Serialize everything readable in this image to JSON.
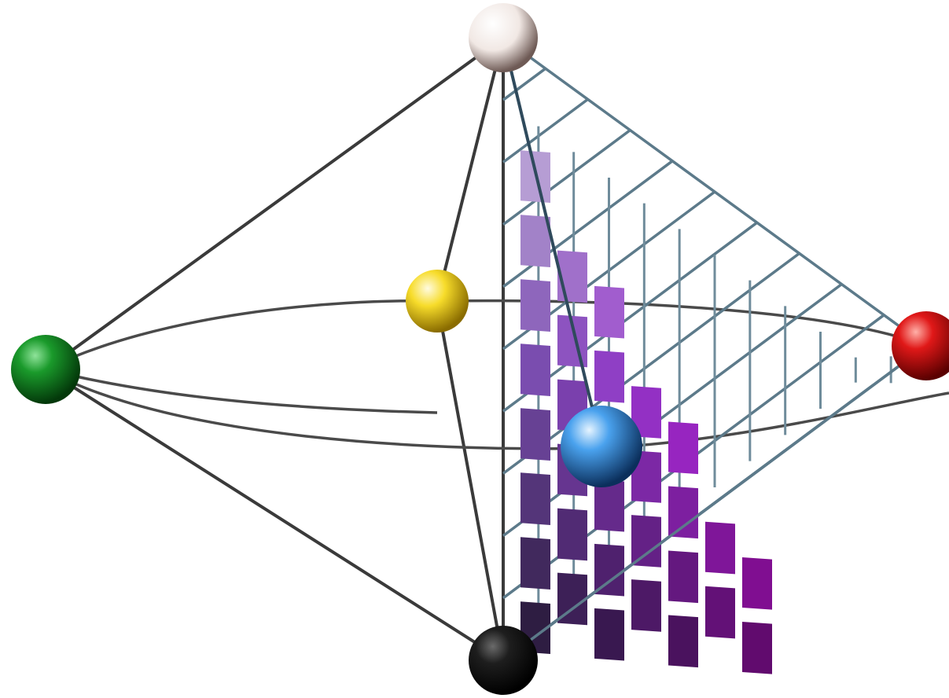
{
  "colors": {
    "background": "#ffffff",
    "edge": "#3a3a3a",
    "grid": "#5c7a8a",
    "white": "#f2ece8",
    "yellow": "#f5d313",
    "green": "#0f8a1f",
    "red": "#d41010",
    "blue": "#3a8ee0",
    "black": "#151515"
  },
  "spheres": [
    {
      "name": "white-sphere",
      "color": "#f2ece8"
    },
    {
      "name": "yellow-sphere",
      "color": "#f5d313"
    },
    {
      "name": "green-sphere",
      "color": "#0f8a1f"
    },
    {
      "name": "red-sphere",
      "color": "#d41010"
    },
    {
      "name": "blue-sphere",
      "color": "#3a8ee0"
    },
    {
      "name": "black-sphere",
      "color": "#151515"
    }
  ]
}
